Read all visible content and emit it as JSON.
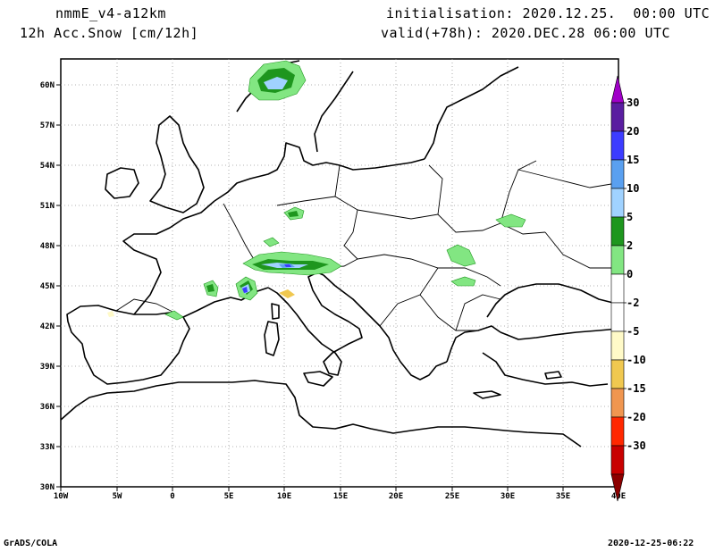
{
  "header": {
    "model": "nmmE_v4-a12km",
    "field": "12h Acc.Snow [cm/12h]",
    "init": "initialisation: 2020.12.25.  00:00 UTC",
    "valid": "valid(+78h): 2020.DEC.28 06:00 UTC"
  },
  "footer": {
    "left": "GrADS/COLA",
    "right": "2020-12-25-06:22"
  },
  "axes": {
    "lon_labels": [
      "10W",
      "5W",
      "0",
      "5E",
      "10E",
      "15E",
      "20E",
      "25E",
      "30E",
      "35E",
      "40E"
    ],
    "lat_labels": [
      "30N",
      "33N",
      "36N",
      "39N",
      "42N",
      "45N",
      "48N",
      "51N",
      "54N",
      "57N",
      "60N"
    ]
  },
  "colorbar": {
    "levels": [
      {
        "label": "30",
        "color": "#5a1ea0"
      },
      {
        "label": "20",
        "color": "#3c3cff"
      },
      {
        "label": "15",
        "color": "#5aa0f0"
      },
      {
        "label": "10",
        "color": "#a0d2ff"
      },
      {
        "label": "5",
        "color": "#1e961e"
      },
      {
        "label": "2",
        "color": "#82e682"
      },
      {
        "label": "0",
        "color": "#ffffff"
      },
      {
        "label": "-2",
        "color": "#ffffff"
      },
      {
        "label": "-5",
        "color": "#fffac8"
      },
      {
        "label": "-10",
        "color": "#f0c850"
      },
      {
        "label": "-15",
        "color": "#f09650"
      },
      {
        "label": "-20",
        "color": "#ff2800"
      },
      {
        "label": "-30",
        "color": "#c80000"
      }
    ],
    "top_color": "#a000c8",
    "bottom_color": "#8c0000"
  }
}
